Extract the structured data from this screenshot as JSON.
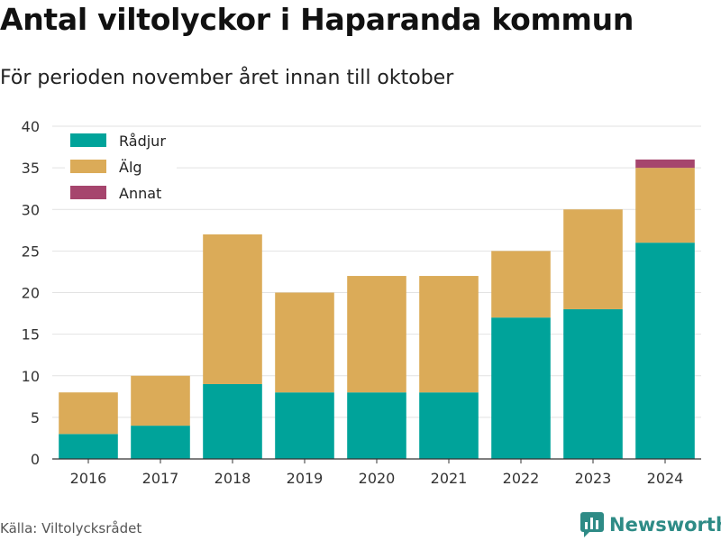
{
  "header": {
    "title": "Antal viltolyckor i Haparanda kommun",
    "subtitle": "För perioden november året innan till oktober"
  },
  "footer": {
    "source": "Källa: Viltolycksrådet",
    "brand": "Newsworthy",
    "brand_icon": "bar-chart-logo-icon"
  },
  "colors": {
    "radjur": "#00a39a",
    "alg": "#dbab58",
    "annat": "#a6456d",
    "brand": "#2e8b86"
  },
  "chart_data": {
    "type": "bar",
    "stacked": true,
    "categories": [
      "2016",
      "2017",
      "2018",
      "2019",
      "2020",
      "2021",
      "2022",
      "2023",
      "2024"
    ],
    "series": [
      {
        "name": "Rådjur",
        "values": [
          3,
          4,
          9,
          8,
          8,
          8,
          17,
          18,
          26
        ]
      },
      {
        "name": "Älg",
        "values": [
          5,
          6,
          18,
          12,
          14,
          14,
          8,
          12,
          9
        ]
      },
      {
        "name": "Annat",
        "values": [
          0,
          0,
          0,
          0,
          0,
          0,
          0,
          0,
          1
        ]
      }
    ],
    "yticks": [
      "0",
      "5",
      "10",
      "15",
      "20",
      "25",
      "30",
      "35",
      "40"
    ],
    "ylim": [
      0,
      40
    ],
    "grid": true,
    "legend": "top-left"
  }
}
